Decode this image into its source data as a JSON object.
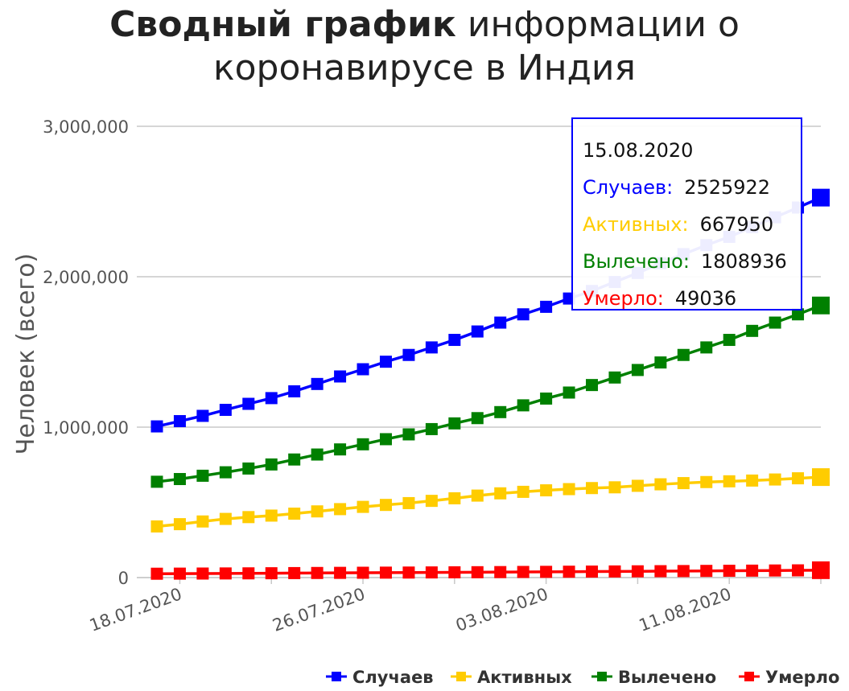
{
  "title": {
    "bold": "Сводный график",
    "line1_rest": " информации о",
    "line2": "коронавирусе в Индия"
  },
  "chart_data": {
    "type": "line",
    "title": "Сводный график информации о коронавирусе в Индия",
    "ylabel": "Человек (всего)",
    "xlabel": "",
    "ylim": [
      0,
      3000000
    ],
    "yticks": [
      "3,000,000",
      "2,000,000",
      "1,000,000",
      "0"
    ],
    "ytick_values": [
      3000000,
      2000000,
      1000000,
      0
    ],
    "xticks": [
      "18.07.2020",
      "26.07.2020",
      "03.08.2020",
      "11.08.2020"
    ],
    "x": [
      "17.07.2020",
      "18.07.2020",
      "19.07.2020",
      "20.07.2020",
      "21.07.2020",
      "22.07.2020",
      "23.07.2020",
      "24.07.2020",
      "25.07.2020",
      "26.07.2020",
      "27.07.2020",
      "28.07.2020",
      "29.07.2020",
      "30.07.2020",
      "31.07.2020",
      "01.08.2020",
      "02.08.2020",
      "03.08.2020",
      "04.08.2020",
      "05.08.2020",
      "06.08.2020",
      "07.08.2020",
      "08.08.2020",
      "09.08.2020",
      "10.08.2020",
      "11.08.2020",
      "12.08.2020",
      "13.08.2020",
      "14.08.2020",
      "15.08.2020"
    ],
    "grid": true,
    "legend_position": "bottom",
    "series": [
      {
        "name": "Случаев",
        "color": "#0000ff",
        "values": [
          1005000,
          1040000,
          1075000,
          1115000,
          1155000,
          1193000,
          1238000,
          1287000,
          1337000,
          1385000,
          1435000,
          1480000,
          1530000,
          1580000,
          1636000,
          1695000,
          1750000,
          1800000,
          1855000,
          1905000,
          1965000,
          2025000,
          2090000,
          2150000,
          2210000,
          2265000,
          2330000,
          2395000,
          2460000,
          2525922
        ]
      },
      {
        "name": "Активных",
        "color": "#ffcc00",
        "values": [
          340000,
          355000,
          373000,
          390000,
          402000,
          412000,
          425000,
          440000,
          455000,
          470000,
          483000,
          495000,
          510000,
          527000,
          545000,
          560000,
          570000,
          580000,
          588000,
          595000,
          600000,
          610000,
          620000,
          628000,
          635000,
          640000,
          645000,
          652000,
          660000,
          667950
        ]
      },
      {
        "name": "Вылечено",
        "color": "#008000",
        "values": [
          637000,
          655000,
          677000,
          700000,
          725000,
          752000,
          785000,
          818000,
          852000,
          886000,
          920000,
          952000,
          987000,
          1025000,
          1060000,
          1100000,
          1145000,
          1190000,
          1230000,
          1280000,
          1330000,
          1380000,
          1430000,
          1480000,
          1530000,
          1580000,
          1640000,
          1695000,
          1750000,
          1808936
        ]
      },
      {
        "name": "Умерло",
        "color": "#ff0000",
        "values": [
          25600,
          26200,
          26800,
          27500,
          28100,
          28800,
          29800,
          30600,
          31400,
          32100,
          32800,
          33400,
          34200,
          35000,
          35700,
          36500,
          37400,
          38100,
          39000,
          39800,
          40700,
          41600,
          42500,
          43400,
          44400,
          45300,
          46100,
          47100,
          48000,
          49036
        ]
      }
    ]
  },
  "tooltip": {
    "date": "15.08.2020",
    "rows": [
      {
        "label": "Случаев:",
        "value": "2525922",
        "color": "#0000ff"
      },
      {
        "label": "Активных:",
        "value": "667950",
        "color": "#ffcc00"
      },
      {
        "label": "Вылечено:",
        "value": "1808936",
        "color": "#008000"
      },
      {
        "label": "Умерло:",
        "value": "49036",
        "color": "#ff0000"
      }
    ]
  }
}
